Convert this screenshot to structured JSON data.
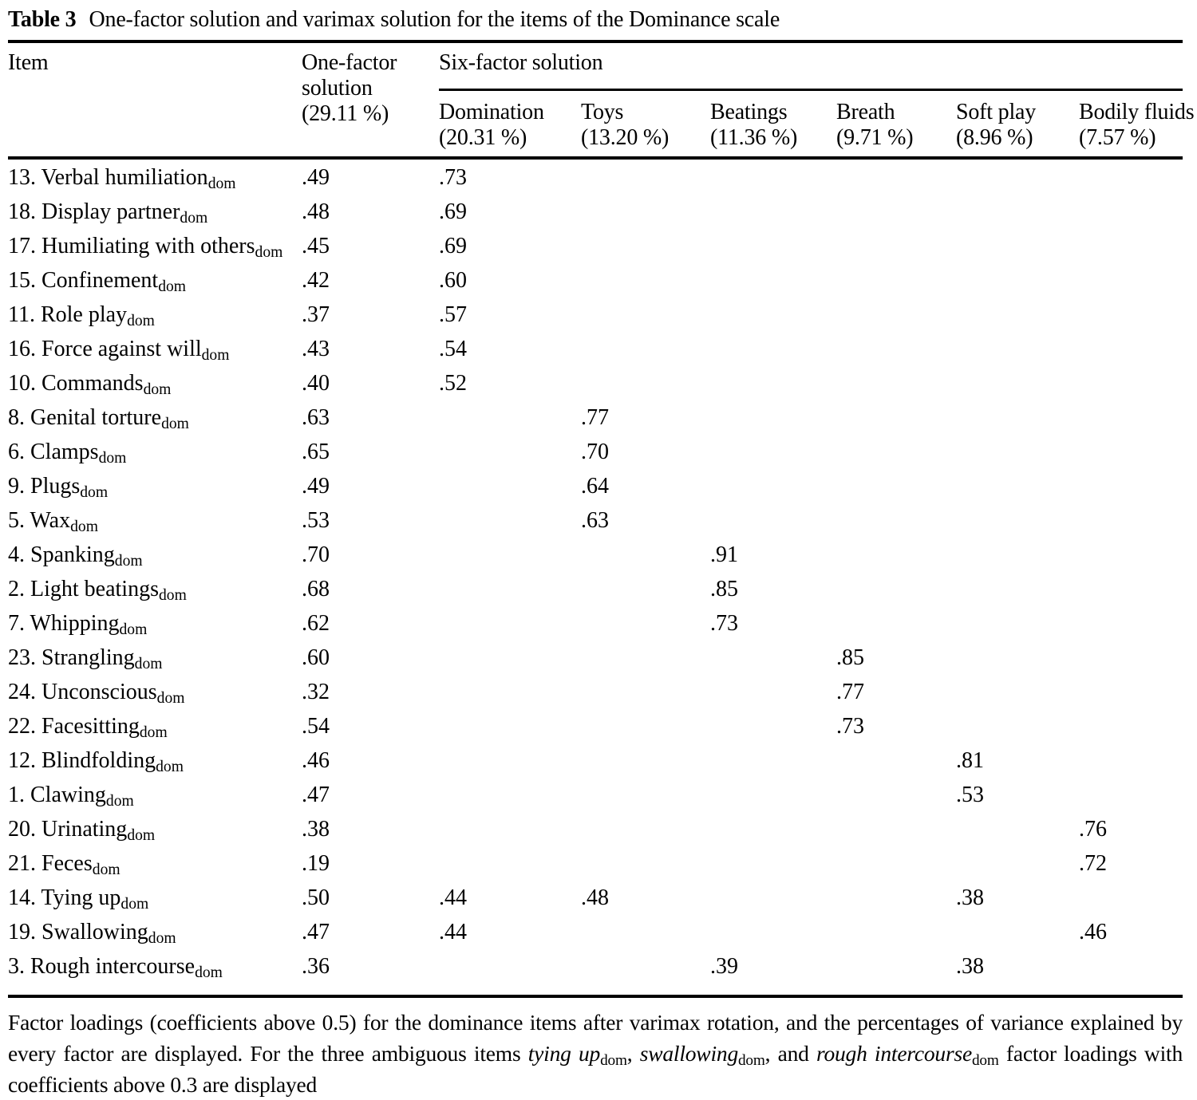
{
  "title": {
    "label": "Table 3",
    "text": "One-factor solution and varimax solution for the items of the Dominance scale"
  },
  "header": {
    "item": "Item",
    "one_factor_lines": [
      "One-factor",
      "solution",
      "(29.11 %)"
    ],
    "six_factor": "Six-factor solution",
    "factors": [
      {
        "name": "Domination",
        "pct": "(20.31 %)"
      },
      {
        "name": "Toys",
        "pct": "(13.20 %)"
      },
      {
        "name": "Beatings",
        "pct": "(11.36 %)"
      },
      {
        "name": "Breath",
        "pct": "(9.71 %)"
      },
      {
        "name": "Soft play",
        "pct": "(8.96 %)"
      },
      {
        "name": "Bodily fluids",
        "pct": "(7.57 %)"
      }
    ]
  },
  "rows": [
    {
      "item": "13. Verbal humiliation",
      "sub": "dom",
      "one_factor": ".49",
      "loadings": [
        ".73",
        "",
        "",
        "",
        "",
        ""
      ]
    },
    {
      "item": "18. Display partner",
      "sub": "dom",
      "one_factor": ".48",
      "loadings": [
        ".69",
        "",
        "",
        "",
        "",
        ""
      ]
    },
    {
      "item": "17. Humiliating with others",
      "sub": "dom",
      "one_factor": ".45",
      "loadings": [
        ".69",
        "",
        "",
        "",
        "",
        ""
      ]
    },
    {
      "item": "15. Confinement",
      "sub": "dom",
      "one_factor": ".42",
      "loadings": [
        ".60",
        "",
        "",
        "",
        "",
        ""
      ]
    },
    {
      "item": "11. Role play",
      "sub": "dom",
      "one_factor": ".37",
      "loadings": [
        ".57",
        "",
        "",
        "",
        "",
        ""
      ]
    },
    {
      "item": "16. Force against will",
      "sub": "dom",
      "one_factor": ".43",
      "loadings": [
        ".54",
        "",
        "",
        "",
        "",
        ""
      ]
    },
    {
      "item": "10. Commands",
      "sub": "dom",
      "one_factor": ".40",
      "loadings": [
        ".52",
        "",
        "",
        "",
        "",
        ""
      ]
    },
    {
      "item": "8. Genital torture",
      "sub": "dom",
      "one_factor": ".63",
      "loadings": [
        "",
        ".77",
        "",
        "",
        "",
        ""
      ]
    },
    {
      "item": "6. Clamps",
      "sub": "dom",
      "one_factor": ".65",
      "loadings": [
        "",
        ".70",
        "",
        "",
        "",
        ""
      ]
    },
    {
      "item": "9. Plugs",
      "sub": "dom",
      "one_factor": ".49",
      "loadings": [
        "",
        ".64",
        "",
        "",
        "",
        ""
      ]
    },
    {
      "item": "5. Wax",
      "sub": "dom",
      "one_factor": ".53",
      "loadings": [
        "",
        ".63",
        "",
        "",
        "",
        ""
      ]
    },
    {
      "item": "4. Spanking",
      "sub": "dom",
      "one_factor": ".70",
      "loadings": [
        "",
        "",
        ".91",
        "",
        "",
        ""
      ]
    },
    {
      "item": "2. Light beatings",
      "sub": "dom",
      "one_factor": ".68",
      "loadings": [
        "",
        "",
        ".85",
        "",
        "",
        ""
      ]
    },
    {
      "item": "7. Whipping",
      "sub": "dom",
      "one_factor": ".62",
      "loadings": [
        "",
        "",
        ".73",
        "",
        "",
        ""
      ]
    },
    {
      "item": "23. Strangling",
      "sub": "dom",
      "one_factor": ".60",
      "loadings": [
        "",
        "",
        "",
        ".85",
        "",
        ""
      ]
    },
    {
      "item": "24. Unconscious",
      "sub": "dom",
      "one_factor": ".32",
      "loadings": [
        "",
        "",
        "",
        ".77",
        "",
        ""
      ]
    },
    {
      "item": "22. Facesitting",
      "sub": "dom",
      "one_factor": ".54",
      "loadings": [
        "",
        "",
        "",
        ".73",
        "",
        ""
      ]
    },
    {
      "item": "12. Blindfolding",
      "sub": "dom",
      "one_factor": ".46",
      "loadings": [
        "",
        "",
        "",
        "",
        ".81",
        ""
      ]
    },
    {
      "item": "1. Clawing",
      "sub": "dom",
      "one_factor": ".47",
      "loadings": [
        "",
        "",
        "",
        "",
        ".53",
        ""
      ]
    },
    {
      "item": "20. Urinating",
      "sub": "dom",
      "one_factor": ".38",
      "loadings": [
        "",
        "",
        "",
        "",
        "",
        ".76"
      ]
    },
    {
      "item": "21. Feces",
      "sub": "dom",
      "one_factor": ".19",
      "loadings": [
        "",
        "",
        "",
        "",
        "",
        ".72"
      ]
    },
    {
      "item": "14. Tying up",
      "sub": "dom",
      "one_factor": ".50",
      "loadings": [
        ".44",
        ".48",
        "",
        "",
        ".38",
        ""
      ]
    },
    {
      "item": "19. Swallowing",
      "sub": "dom",
      "one_factor": ".47",
      "loadings": [
        ".44",
        "",
        "",
        "",
        "",
        ".46"
      ]
    },
    {
      "item": "3. Rough intercourse",
      "sub": "dom",
      "one_factor": ".36",
      "loadings": [
        "",
        "",
        ".39",
        "",
        ".38",
        ""
      ]
    }
  ],
  "footnote": {
    "segments": [
      {
        "text": "Factor loadings (coefficients above 0.5) for the dominance items after varimax rotation, and the percentages of variance explained by every factor are displayed. For the three ambiguous items ",
        "style": "normal"
      },
      {
        "text": "tying up",
        "style": "italic"
      },
      {
        "text": "dom",
        "style": "sub"
      },
      {
        "text": ", ",
        "style": "normal"
      },
      {
        "text": "swallowing",
        "style": "italic"
      },
      {
        "text": "dom",
        "style": "sub"
      },
      {
        "text": ", and ",
        "style": "normal"
      },
      {
        "text": "rough intercourse",
        "style": "italic"
      },
      {
        "text": "dom",
        "style": "sub"
      },
      {
        "text": " factor loadings with coefficients above 0.3 are displayed",
        "style": "normal"
      }
    ]
  },
  "colors": {
    "text": "#000000",
    "background": "#ffffff",
    "rule": "#000000"
  }
}
